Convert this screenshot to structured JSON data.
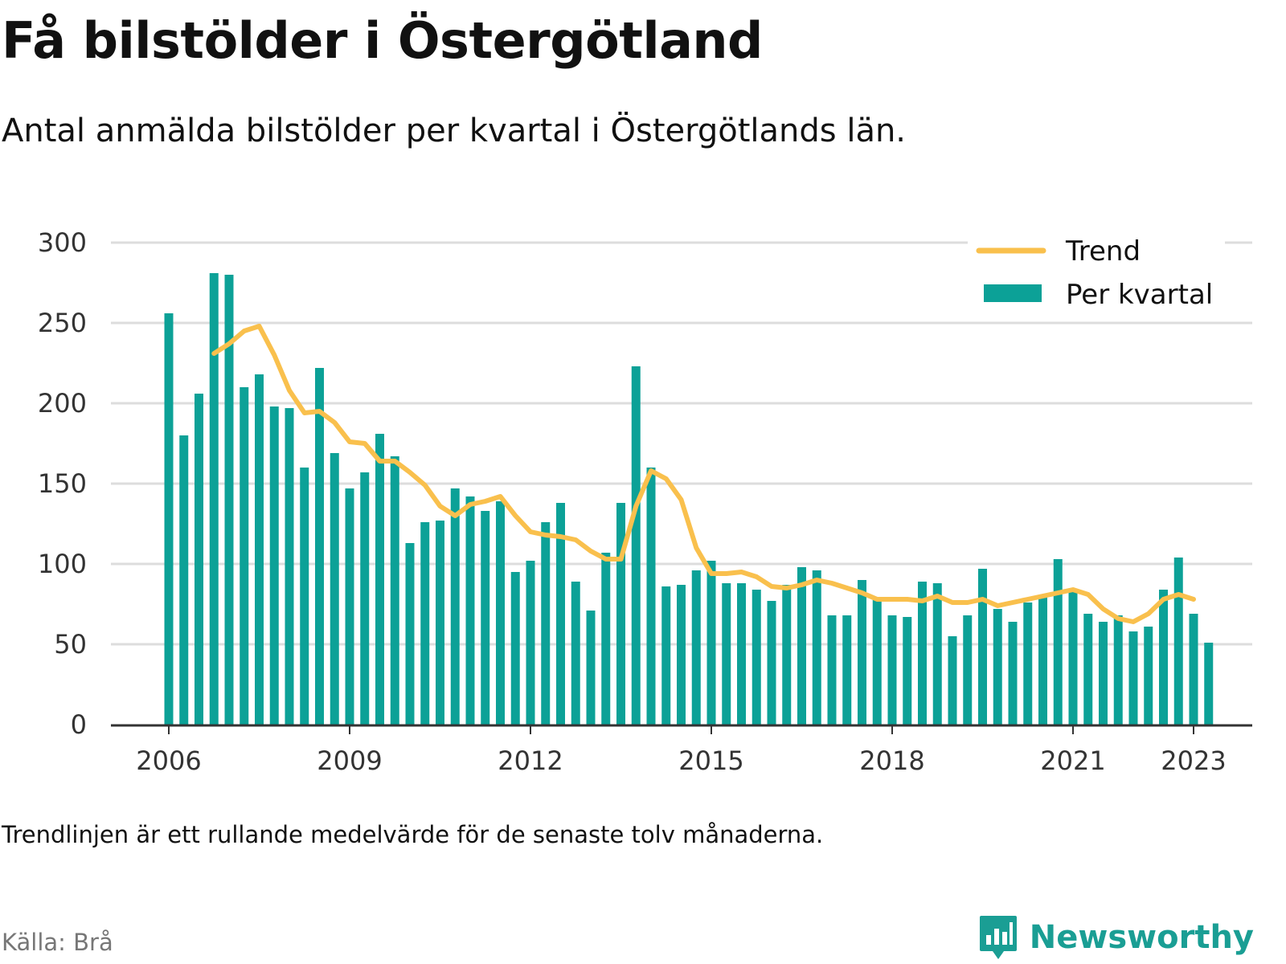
{
  "header": {
    "title": "Få bilstölder i Östergötland",
    "subtitle": "Antal anmälda bilstölder per kvartal i Östergötlands län."
  },
  "footer": {
    "note": "Trendlinjen är ett rullande medelvärde för de senaste tolv månaderna.",
    "source": "Källa: Brå",
    "brand": "Newsworthy"
  },
  "colors": {
    "bars": "#0ca197",
    "trend": "#f9c04d",
    "grid": "#dddddd",
    "axis": "#333333",
    "brand": "#1a9e94"
  },
  "chart_data": {
    "type": "bar",
    "x_start": 2006,
    "periods_per_year": 4,
    "x_ticks": [
      2006,
      2009,
      2012,
      2015,
      2018,
      2021,
      2023
    ],
    "y_ticks": [
      0,
      50,
      100,
      150,
      200,
      250,
      300
    ],
    "ylim": [
      0,
      300
    ],
    "grid": true,
    "legend_position": "top-right",
    "series": [
      {
        "name": "Per kvartal",
        "type": "bar",
        "values": [
          256,
          180,
          206,
          281,
          280,
          210,
          218,
          198,
          197,
          160,
          222,
          169,
          147,
          157,
          181,
          167,
          113,
          126,
          127,
          147,
          142,
          133,
          139,
          95,
          102,
          126,
          138,
          89,
          71,
          107,
          138,
          223,
          160,
          86,
          87,
          96,
          102,
          88,
          88,
          84,
          77,
          87,
          98,
          96,
          68,
          68,
          90,
          79,
          68,
          67,
          89,
          88,
          55,
          68,
          97,
          72,
          64,
          76,
          80,
          103,
          84,
          69,
          64,
          68,
          58,
          61,
          84,
          104,
          69,
          51
        ]
      },
      {
        "name": "Trend",
        "type": "line",
        "start_index": 3,
        "values": [
          231,
          237,
          245,
          248,
          230,
          208,
          194,
          195,
          188,
          176,
          175,
          164,
          164,
          157,
          149,
          136,
          130,
          137,
          139,
          142,
          130,
          120,
          118,
          117,
          115,
          108,
          103,
          103,
          136,
          158,
          153,
          140,
          110,
          94,
          94,
          95,
          92,
          86,
          85,
          87,
          90,
          88,
          85,
          82,
          78,
          78,
          78,
          77,
          80,
          76,
          76,
          78,
          74,
          76,
          78,
          80,
          82,
          84,
          81,
          72,
          66,
          64,
          69,
          78,
          81,
          78
        ]
      }
    ]
  }
}
